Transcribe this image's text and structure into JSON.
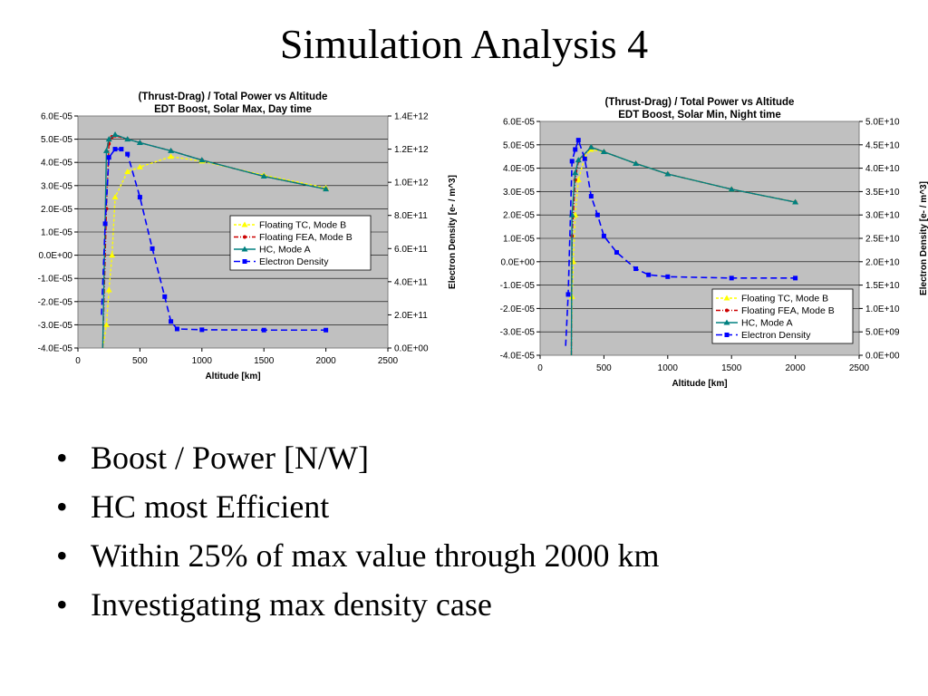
{
  "slide": {
    "title": "Simulation Analysis 4",
    "bullets": [
      "Boost / Power [N/W]",
      "HC most Efficient",
      "Within 25%  of max value through 2000 km",
      "Investigating max density case"
    ]
  },
  "chart_data": [
    {
      "type": "line",
      "title": "(Thrust-Drag) / Total Power vs Altitude",
      "subtitle": "EDT Boost, Solar Max, Day time",
      "xlabel": "Altitude [km]",
      "ylabel": "",
      "y2label": "Electron Density [e- / m^3]",
      "xlim": [
        0,
        2500
      ],
      "ylim": [
        -4e-05,
        6e-05
      ],
      "y2lim": [
        0,
        1400000000000.0
      ],
      "x_ticks": [
        "0",
        "500",
        "1000",
        "1500",
        "2000",
        "2500"
      ],
      "y_ticks": [
        "6.0E-05",
        "5.0E-05",
        "4.0E-05",
        "3.0E-05",
        "2.0E-05",
        "1.0E-05",
        "0.0E+00",
        "-1.0E-05",
        "-2.0E-05",
        "-3.0E-05",
        "-4.0E-05"
      ],
      "y2_ticks": [
        "1.4E+12",
        "1.2E+12",
        "1.0E+12",
        "8.0E+11",
        "6.0E+11",
        "4.0E+11",
        "2.0E+11",
        "0.0E+00"
      ],
      "legend_position": "center-right",
      "grid": true,
      "plot_background": "#c0c0c0",
      "series": [
        {
          "name": "Floating TC, Mode B",
          "color": "#ffff00",
          "dash": "3,2",
          "marker": "triangle",
          "axis": "y",
          "points": [
            [
              200,
              -4e-05
            ],
            [
              230,
              -3e-05
            ],
            [
              250,
              -1.5e-05
            ],
            [
              275,
              0.0
            ],
            [
              300,
              2.5e-05
            ],
            [
              400,
              3.6e-05
            ],
            [
              500,
              3.8e-05
            ],
            [
              750,
              4.25e-05
            ],
            [
              1000,
              4.05e-05
            ],
            [
              1500,
              3.45e-05
            ],
            [
              2000,
              2.9e-05
            ]
          ]
        },
        {
          "name": "Floating FEA, Mode B",
          "color": "#cc0000",
          "dash": "5,2,1,2",
          "marker": "dot",
          "axis": "y",
          "points": [
            [
              200,
              -4e-05
            ],
            [
              230,
              2e-05
            ],
            [
              250,
              4.8e-05
            ],
            [
              275,
              5.1e-05
            ],
            [
              300,
              5.15e-05
            ],
            [
              400,
              5e-05
            ],
            [
              500,
              4.85e-05
            ],
            [
              750,
              4.5e-05
            ],
            [
              1000,
              4.1e-05
            ],
            [
              1500,
              3.4e-05
            ],
            [
              2000,
              2.85e-05
            ]
          ]
        },
        {
          "name": "HC, Mode A",
          "color": "#008080",
          "dash": "",
          "marker": "triangle",
          "axis": "y",
          "points": [
            [
              200,
              -4e-05
            ],
            [
              230,
              4.5e-05
            ],
            [
              250,
              5e-05
            ],
            [
              300,
              5.2e-05
            ],
            [
              400,
              5e-05
            ],
            [
              500,
              4.85e-05
            ],
            [
              750,
              4.5e-05
            ],
            [
              1000,
              4.1e-05
            ],
            [
              1500,
              3.4e-05
            ],
            [
              2000,
              2.85e-05
            ]
          ]
        },
        {
          "name": "Electron Density",
          "color": "#0000ff",
          "dash": "7,4",
          "marker": "square",
          "axis": "y2",
          "points": [
            [
              190,
              200000000000.0
            ],
            [
              220,
              750000000000.0
            ],
            [
              250,
              1150000000000.0
            ],
            [
              300,
              1200000000000.0
            ],
            [
              350,
              1200000000000.0
            ],
            [
              400,
              1170000000000.0
            ],
            [
              500,
              910000000000.0
            ],
            [
              600,
              600000000000.0
            ],
            [
              700,
              310000000000.0
            ],
            [
              750,
              160000000000.0
            ],
            [
              800,
              115000000000.0
            ],
            [
              1000,
              110000000000.0
            ],
            [
              1500,
              108000000000.0
            ],
            [
              2000,
              108000000000.0
            ]
          ]
        }
      ]
    },
    {
      "type": "line",
      "title": "(Thrust-Drag) / Total Power vs Altitude",
      "subtitle": "EDT Boost, Solar Min, Night time",
      "xlabel": "Altitude [km]",
      "ylabel": "",
      "y2label": "Electron Density [e- / m^3]",
      "xlim": [
        0,
        2500
      ],
      "ylim": [
        -4e-05,
        6e-05
      ],
      "y2lim": [
        0,
        50000000000.0
      ],
      "x_ticks": [
        "0",
        "500",
        "1000",
        "1500",
        "2000",
        "2500"
      ],
      "y_ticks": [
        "6.0E-05",
        "5.0E-05",
        "4.0E-05",
        "3.0E-05",
        "2.0E-05",
        "1.0E-05",
        "0.0E+00",
        "-1.0E-05",
        "-2.0E-05",
        "-3.0E-05",
        "-4.0E-05"
      ],
      "y2_ticks": [
        "5.0E+10",
        "4.5E+10",
        "4.0E+10",
        "3.5E+10",
        "3.0E+10",
        "2.5E+10",
        "2.0E+10",
        "1.5E+10",
        "1.0E+10",
        "5.0E+09",
        "0.0E+00"
      ],
      "legend_position": "bottom-right",
      "grid": true,
      "plot_background": "#c0c0c0",
      "series": [
        {
          "name": "Floating TC, Mode B",
          "color": "#ffff00",
          "dash": "3,2",
          "marker": "triangle",
          "axis": "y",
          "points": [
            [
              245,
              -4e-05
            ],
            [
              250,
              -1.5e-05
            ],
            [
              260,
              0.0
            ],
            [
              275,
              2e-05
            ],
            [
              300,
              3.5e-05
            ],
            [
              350,
              4.5e-05
            ],
            [
              400,
              4.8e-05
            ],
            [
              500,
              4.7e-05
            ],
            [
              750,
              4.2e-05
            ],
            [
              1000,
              3.75e-05
            ],
            [
              1500,
              3.1e-05
            ],
            [
              2000,
              2.55e-05
            ]
          ]
        },
        {
          "name": "Floating FEA, Mode B",
          "color": "#cc0000",
          "dash": "5,2,1,2",
          "marker": "dot",
          "axis": "y",
          "points": [
            [
              245,
              -4e-05
            ],
            [
              250,
              1.1e-05
            ],
            [
              275,
              3.5e-05
            ],
            [
              300,
              4.3e-05
            ],
            [
              400,
              4.9e-05
            ],
            [
              500,
              4.7e-05
            ],
            [
              750,
              4.2e-05
            ],
            [
              1000,
              3.75e-05
            ],
            [
              1500,
              3.1e-05
            ],
            [
              2000,
              2.55e-05
            ]
          ]
        },
        {
          "name": "HC, Mode A",
          "color": "#008080",
          "dash": "",
          "marker": "triangle",
          "axis": "y",
          "points": [
            [
              245,
              -4e-05
            ],
            [
              250,
              2e-05
            ],
            [
              275,
              3.8e-05
            ],
            [
              300,
              4.35e-05
            ],
            [
              400,
              4.9e-05
            ],
            [
              500,
              4.7e-05
            ],
            [
              750,
              4.2e-05
            ],
            [
              1000,
              3.75e-05
            ],
            [
              1500,
              3.1e-05
            ],
            [
              2000,
              2.55e-05
            ]
          ]
        },
        {
          "name": "Electron Density",
          "color": "#0000ff",
          "dash": "7,4",
          "marker": "square",
          "axis": "y2",
          "points": [
            [
              200,
              2000000000.0
            ],
            [
              220,
              13000000000.0
            ],
            [
              250,
              41500000000.0
            ],
            [
              275,
              44000000000.0
            ],
            [
              300,
              46000000000.0
            ],
            [
              350,
              42000000000.0
            ],
            [
              400,
              34000000000.0
            ],
            [
              450,
              30000000000.0
            ],
            [
              500,
              25500000000.0
            ],
            [
              600,
              22000000000.0
            ],
            [
              750,
              18500000000.0
            ],
            [
              850,
              17200000000.0
            ],
            [
              1000,
              16800000000.0
            ],
            [
              1500,
              16500000000.0
            ],
            [
              2000,
              16500000000.0
            ]
          ]
        }
      ]
    }
  ]
}
